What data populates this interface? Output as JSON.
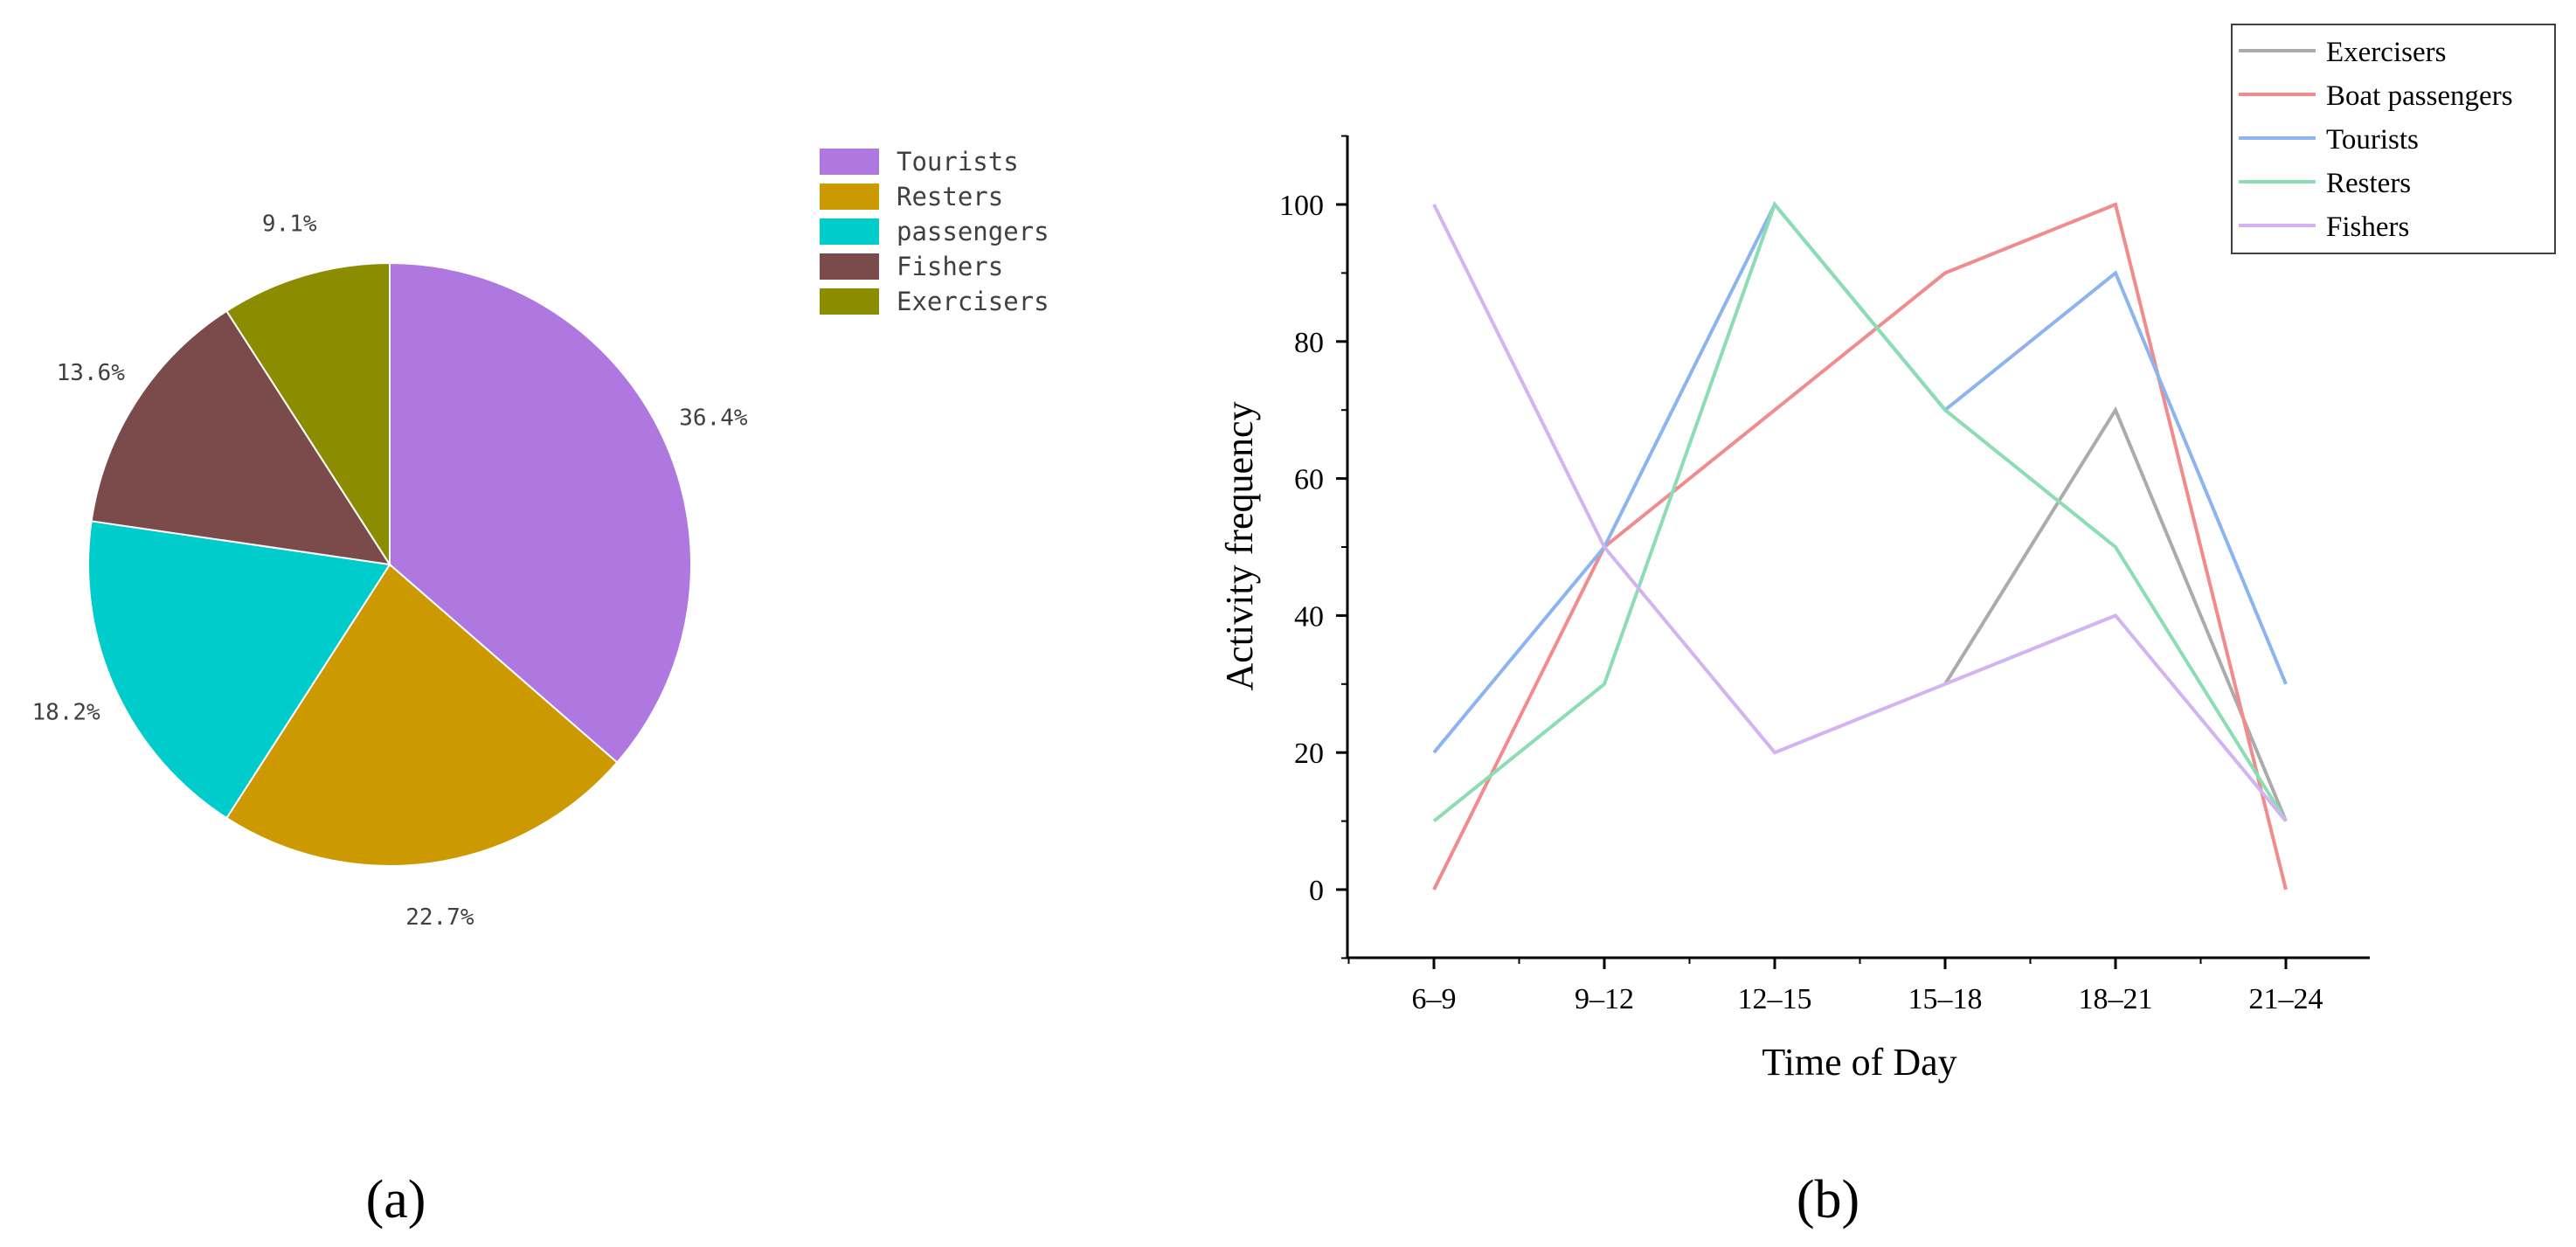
{
  "chart_data": [
    {
      "type": "pie",
      "legend_placement": "right",
      "slices": [
        {
          "label": "Tourists",
          "value": 36.4,
          "pct_label": "36.4%",
          "color": "#AF78E0"
        },
        {
          "label": "Resters",
          "value": 22.7,
          "pct_label": "22.7%",
          "color": "#CC9900"
        },
        {
          "label": "passengers",
          "value": 18.2,
          "pct_label": "18.2%",
          "color": "#00CCCC"
        },
        {
          "label": "Fishers",
          "value": 13.6,
          "pct_label": "13.6%",
          "color": "#7B4B4B"
        },
        {
          "label": "Exercisers",
          "value": 9.1,
          "pct_label": "9.1%",
          "color": "#8C8C00"
        }
      ]
    },
    {
      "type": "line",
      "xlabel": "Time of Day",
      "ylabel": "Activity frequency",
      "categories": [
        "6–9",
        "9–12",
        "12–15",
        "15–18",
        "18–21",
        "21–24"
      ],
      "yticks": [
        0,
        20,
        40,
        60,
        80,
        100
      ],
      "ylim": [
        -10,
        110
      ],
      "grid": false,
      "legend_placement": "top-right",
      "series": [
        {
          "name": "Exercisers",
          "color": "#ABABAB",
          "values": [
            null,
            null,
            null,
            30,
            70,
            10
          ]
        },
        {
          "name": "Boat passengers",
          "color": "#F08C8C",
          "values": [
            0,
            50,
            70,
            90,
            100,
            0
          ]
        },
        {
          "name": "Tourists",
          "color": "#8CB4F0",
          "values": [
            20,
            50,
            100,
            70,
            90,
            30
          ]
        },
        {
          "name": "Resters",
          "color": "#8CDCB4",
          "values": [
            10,
            30,
            100,
            70,
            50,
            10
          ]
        },
        {
          "name": "Fishers",
          "color": "#D2B4F0",
          "values": [
            100,
            50,
            20,
            30,
            40,
            10
          ]
        }
      ]
    }
  ],
  "panels": {
    "a": "(a)",
    "b": "(b)"
  }
}
